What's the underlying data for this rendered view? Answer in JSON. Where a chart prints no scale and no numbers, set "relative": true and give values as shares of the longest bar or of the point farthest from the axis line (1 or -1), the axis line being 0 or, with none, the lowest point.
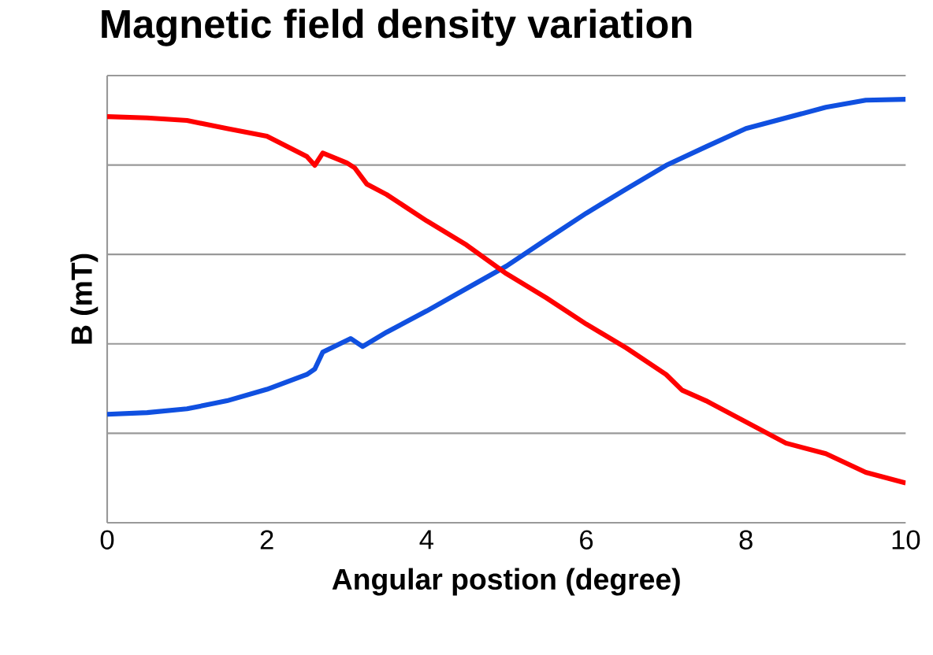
{
  "chart_data": {
    "type": "line",
    "title": "Magnetic field density variation",
    "xlabel": "Angular postion (degree)",
    "ylabel": "B (mT)",
    "relative": true,
    "grid": "y",
    "marker": "none",
    "line_style": "solid",
    "xlim": [
      0,
      10
    ],
    "xticks": [
      0,
      2,
      4,
      6,
      8,
      10
    ],
    "series": [
      {
        "color": "#1050e0",
        "x": [
          0,
          0.5,
          1,
          1.5,
          2,
          2.5,
          2.6,
          2.7,
          3.05,
          3.2,
          3.5,
          4,
          4.5,
          5,
          5.5,
          6,
          6.5,
          7,
          7.5,
          8,
          8.5,
          9,
          9.5,
          10
        ],
        "values": [
          0.256,
          0.26,
          0.269,
          0.288,
          0.315,
          0.35,
          0.363,
          0.403,
          0.435,
          0.416,
          0.45,
          0.5,
          0.553,
          0.606,
          0.669,
          0.731,
          0.788,
          0.844,
          0.888,
          0.931,
          0.956,
          0.981,
          0.998,
          1.0
        ]
      },
      {
        "color": "#ff0000",
        "x": [
          0,
          0.5,
          1,
          1.5,
          2,
          2.5,
          2.6,
          2.7,
          3,
          3.1,
          3.25,
          3.5,
          4,
          4.5,
          5,
          5.5,
          6,
          6.5,
          7,
          7.2,
          7.5,
          8,
          8.5,
          9,
          9.5,
          10
        ],
        "values": [
          0.959,
          0.956,
          0.95,
          0.931,
          0.913,
          0.865,
          0.844,
          0.873,
          0.85,
          0.838,
          0.8,
          0.775,
          0.713,
          0.656,
          0.588,
          0.531,
          0.469,
          0.413,
          0.35,
          0.313,
          0.288,
          0.238,
          0.188,
          0.163,
          0.119,
          0.094
        ]
      }
    ]
  }
}
